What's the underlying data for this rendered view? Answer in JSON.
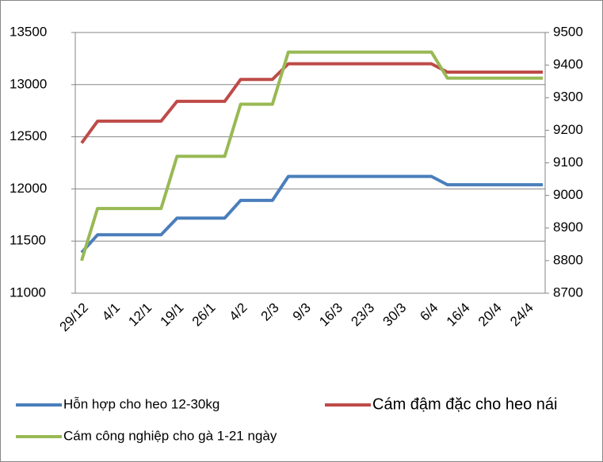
{
  "chart_data": {
    "type": "line",
    "categories": [
      "29/12",
      null,
      "4/1",
      null,
      "12/1",
      null,
      "19/1",
      null,
      "26/1",
      null,
      "4/2",
      null,
      "2/3",
      null,
      "9/3",
      null,
      "16/3",
      null,
      "23/3",
      null,
      "30/3",
      null,
      "6/4",
      null,
      "16/4",
      null,
      "20/4",
      null,
      "24/4",
      null
    ],
    "ylim": [
      11000,
      13500
    ],
    "yticks": [
      11000,
      11500,
      12000,
      12500,
      13000,
      13500
    ],
    "y2lim": [
      8700,
      9500
    ],
    "y2ticks": [
      8700,
      8800,
      8900,
      9000,
      9100,
      9200,
      9300,
      9400,
      9500
    ],
    "grid": true,
    "legend": "bottom",
    "series": [
      {
        "name": "Hỗn hợp cho heo 12-30kg",
        "color": "#4a7ebb",
        "values": [
          11390,
          11560,
          11560,
          11560,
          11560,
          11560,
          11720,
          11720,
          11720,
          11720,
          11890,
          11890,
          11890,
          12120,
          12120,
          12120,
          12120,
          12120,
          12120,
          12120,
          12120,
          12120,
          12120,
          12040,
          12040,
          12040,
          12040,
          12040,
          12040,
          12040
        ]
      },
      {
        "name": "Cám đậm đặc cho heo nái",
        "color": "#be4b48",
        "values": [
          12440,
          12650,
          12650,
          12650,
          12650,
          12650,
          12840,
          12840,
          12840,
          12840,
          13050,
          13050,
          13050,
          13200,
          13200,
          13200,
          13200,
          13200,
          13200,
          13200,
          13200,
          13200,
          13200,
          13120,
          13120,
          13120,
          13120,
          13120,
          13120,
          13120
        ]
      },
      {
        "name": "Cám công nghiệp cho gà 1-21 ngày",
        "color": "#98b954",
        "axis": "y2",
        "values": [
          8800,
          8960,
          8960,
          8960,
          8960,
          8960,
          9120,
          9120,
          9120,
          9120,
          9280,
          9280,
          9280,
          9440,
          9440,
          9440,
          9440,
          9440,
          9440,
          9440,
          9440,
          9440,
          9440,
          9360,
          9360,
          9360,
          9360,
          9360,
          9360,
          9360
        ]
      }
    ]
  }
}
